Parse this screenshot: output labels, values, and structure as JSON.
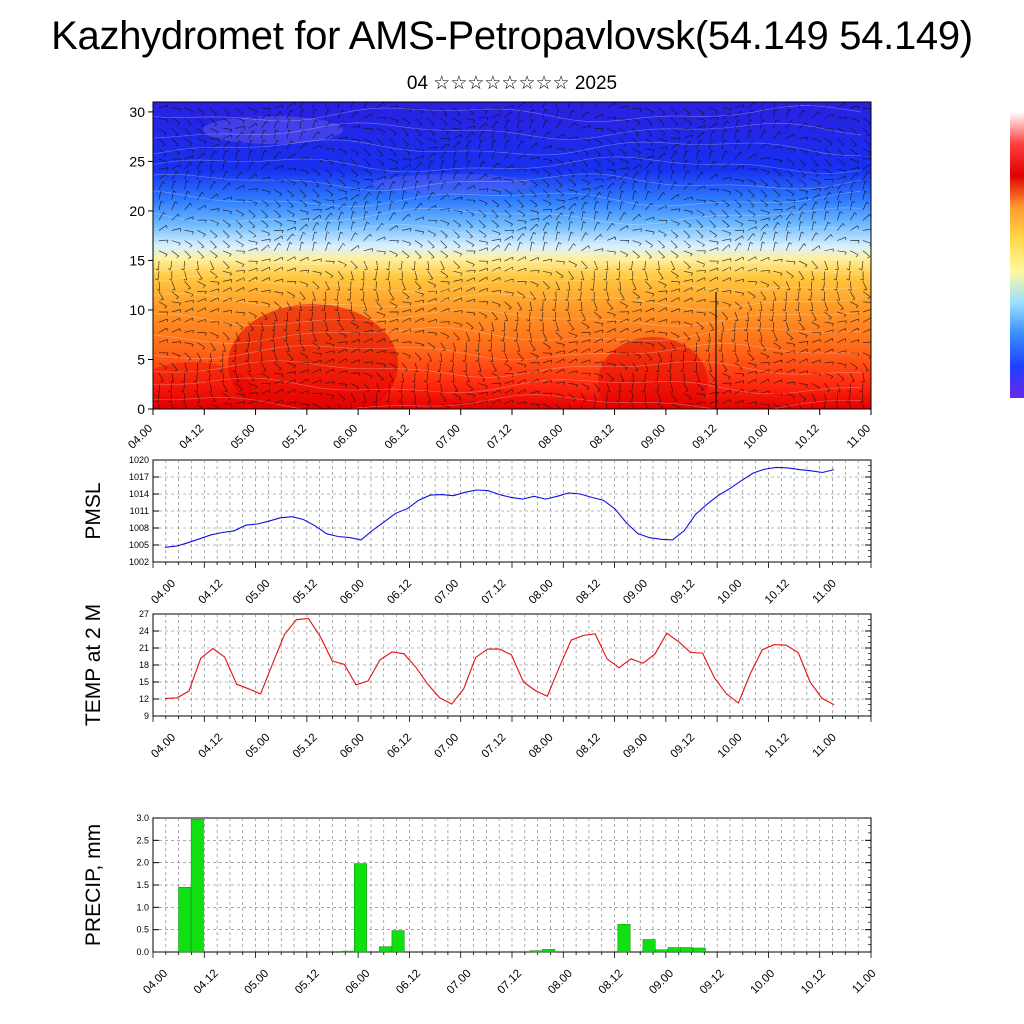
{
  "title": "Kazhydromet for AMS-Petropavlovsk(54.149 54.149)",
  "subtitle": "04 ☆☆☆☆☆☆☆☆ 2025",
  "time_ticks": [
    "04.00",
    "04.12",
    "05.00",
    "05.12",
    "06.00",
    "06.12",
    "07.00",
    "07.12",
    "08.00",
    "08.12",
    "09.00",
    "09.12",
    "10.00",
    "10.12",
    "11.00"
  ],
  "chart_data": [
    {
      "type": "heatmap",
      "name": "cross-section",
      "yticks": [
        0,
        5,
        10,
        15,
        20,
        25,
        30
      ],
      "ylim": [
        0,
        31
      ],
      "colorbar_colors": [
        "#ffffff",
        "#ff4040",
        "#e00000",
        "#ff9a30",
        "#ffd84a",
        "#fff8a0",
        "#9ae0ff",
        "#3a8cff",
        "#2040ff",
        "#6a28e8"
      ]
    },
    {
      "type": "line",
      "ylabel": "PMSL",
      "yticks": [
        1002,
        1005,
        1008,
        1011,
        1014,
        1017,
        1020
      ],
      "ylim": [
        1002,
        1020
      ],
      "color": "#1010e0",
      "values": [
        1004.6,
        1004.8,
        1005.4,
        1006.1,
        1006.8,
        1007.2,
        1007.5,
        1008.5,
        1008.7,
        1009.2,
        1009.8,
        1010.0,
        1009.5,
        1008.4,
        1007.0,
        1006.5,
        1006.3,
        1005.9,
        1007.6,
        1009.1,
        1010.6,
        1011.4,
        1012.9,
        1013.8,
        1013.9,
        1013.7,
        1014.3,
        1014.7,
        1014.6,
        1013.9,
        1013.4,
        1013.1,
        1013.6,
        1013.1,
        1013.6,
        1014.2,
        1014.0,
        1013.4,
        1012.9,
        1011.4,
        1008.9,
        1007.0,
        1006.3,
        1006.0,
        1005.9,
        1007.5,
        1010.4,
        1012.2,
        1013.8,
        1015.0,
        1016.4,
        1017.7,
        1018.4,
        1018.7,
        1018.6,
        1018.3,
        1018.1,
        1017.8,
        1018.3
      ]
    },
    {
      "type": "line",
      "ylabel": "TEMP at 2 M",
      "yticks": [
        9,
        12,
        15,
        18,
        21,
        24,
        27
      ],
      "ylim": [
        9,
        27
      ],
      "color": "#e01010",
      "values": [
        12.1,
        12.2,
        13.4,
        19.2,
        20.9,
        19.4,
        14.6,
        13.8,
        12.9,
        18.2,
        23.4,
        26.0,
        26.2,
        23.0,
        18.7,
        18.1,
        14.5,
        15.2,
        18.9,
        20.3,
        20.0,
        17.6,
        14.6,
        12.2,
        11.1,
        13.8,
        19.3,
        20.8,
        20.8,
        19.8,
        15.0,
        13.5,
        12.5,
        17.6,
        22.4,
        23.2,
        23.5,
        19.1,
        17.5,
        19.1,
        18.3,
        19.9,
        23.6,
        22.1,
        20.2,
        20.1,
        15.7,
        12.9,
        11.3,
        16.5,
        20.7,
        21.6,
        21.5,
        20.2,
        15.0,
        12.1,
        11.0
      ]
    },
    {
      "type": "bar",
      "ylabel": "PRECIP, mm",
      "yticks": [
        "0.0",
        "0.5",
        "1.0",
        "1.5",
        "2.0",
        "2.5",
        "3.0"
      ],
      "ylim": [
        0,
        3.0
      ],
      "color": "#10e010",
      "values": [
        0,
        1.45,
        2.97,
        0,
        0,
        0,
        0,
        0,
        0,
        0,
        0,
        0,
        0,
        0,
        0.02,
        1.98,
        0,
        0.12,
        0.48,
        0,
        0,
        0,
        0,
        0,
        0,
        0,
        0,
        0,
        0,
        0.03,
        0.06,
        0,
        0,
        0,
        0,
        0,
        0.62,
        0,
        0.28,
        0.05,
        0.1,
        0.1,
        0.09,
        0,
        0,
        0,
        0,
        0,
        0,
        0,
        0,
        0,
        0,
        0,
        0,
        0
      ]
    }
  ]
}
